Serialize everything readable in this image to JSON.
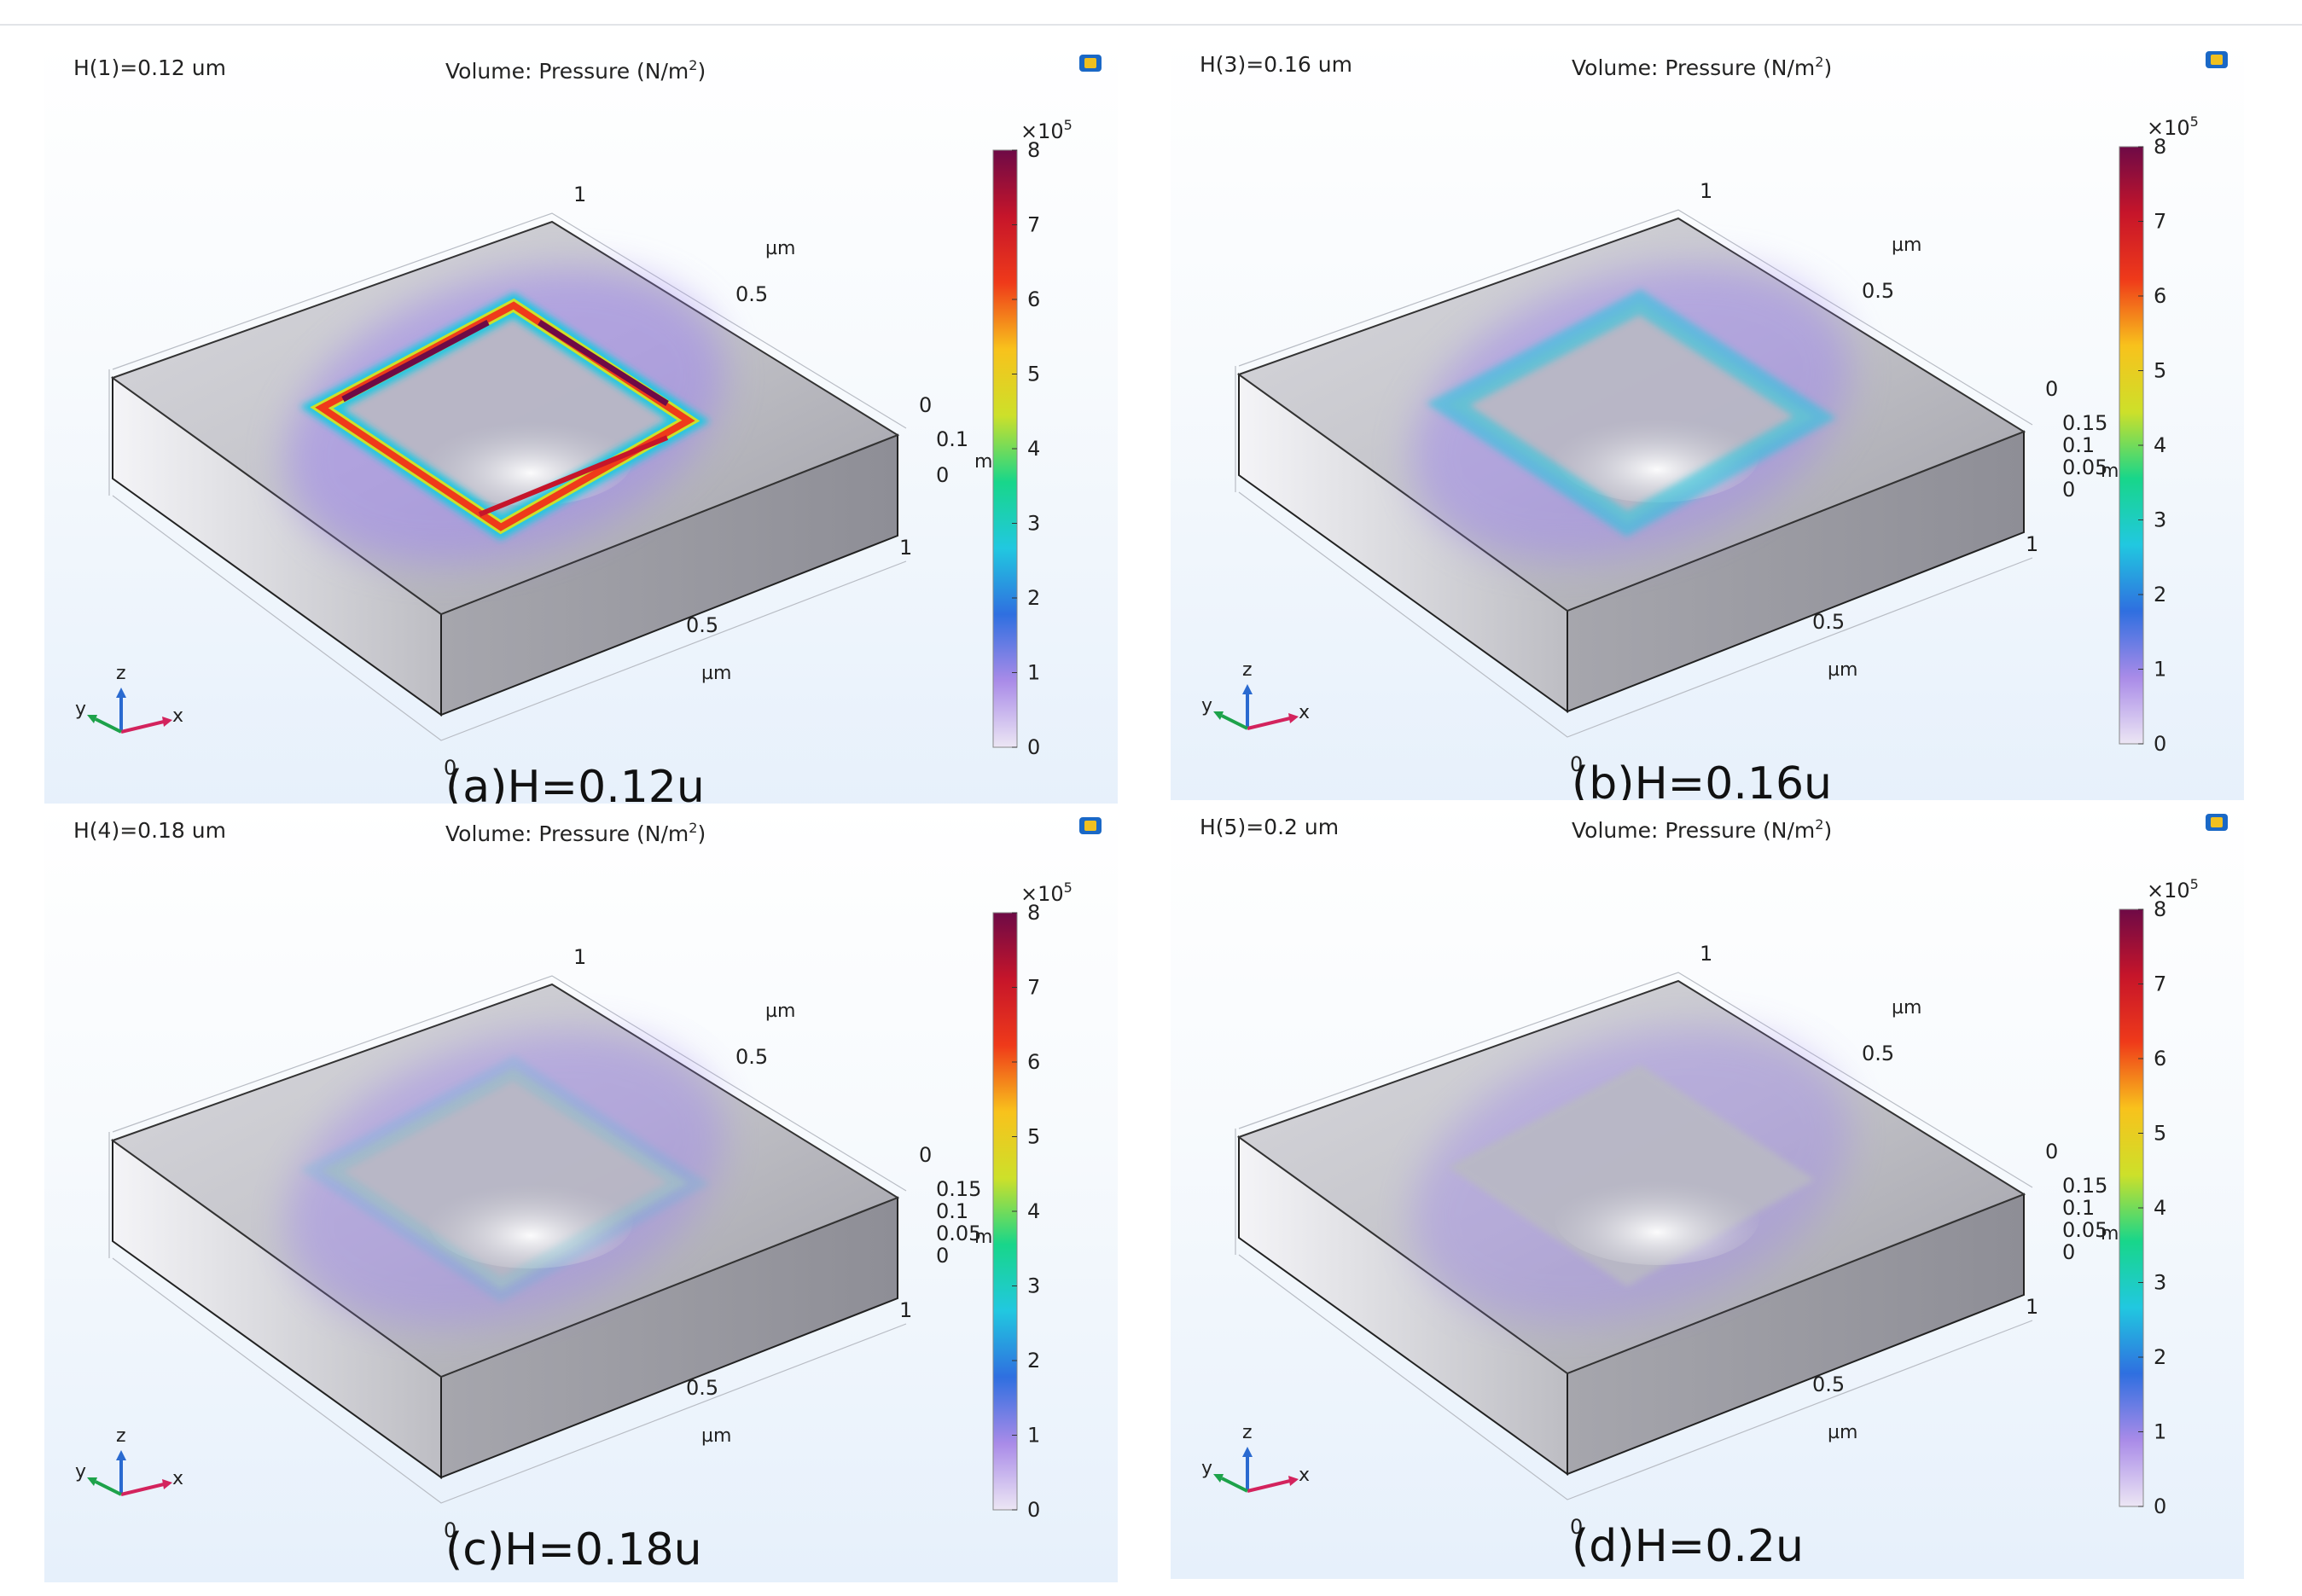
{
  "colormap": {
    "stops": [
      "#ece6f4",
      "#a98be8",
      "#2f6fe0",
      "#21c8e0",
      "#18d68a",
      "#cde02a",
      "#f8c21c",
      "#ef3a1a",
      "#c6152a",
      "#6e0a46"
    ]
  },
  "panels": [
    {
      "id": "a",
      "param": "H(1)=0.12 um",
      "volume_title": "Volume: Pressure (N/m",
      "units_sup": "2",
      "units_close": ")",
      "caption": "(a)H=0.12u",
      "colorbar": {
        "multiplier": "×10",
        "exponent": "5",
        "ticks": [
          "8",
          "7",
          "6",
          "5",
          "4",
          "3",
          "2",
          "1",
          "0"
        ]
      },
      "axis": {
        "x_labels": [
          "0",
          "0.5",
          "1"
        ],
        "y_labels": [
          "0.5",
          "1"
        ],
        "z_labels": [
          "0",
          "0.1",
          "0"
        ],
        "x_unit": "µm",
        "y_unit": "µm",
        "z_unit": "m"
      },
      "triad": {
        "x": "x",
        "y": "y",
        "z": "z"
      },
      "indicator": "logo-icon"
    },
    {
      "id": "b",
      "param": "H(3)=0.16 um",
      "volume_title": "Volume: Pressure (N/m",
      "units_sup": "2",
      "units_close": ")",
      "caption": "(b)H=0.16u",
      "colorbar": {
        "multiplier": "×10",
        "exponent": "5",
        "ticks": [
          "8",
          "7",
          "6",
          "5",
          "4",
          "3",
          "2",
          "1",
          "0"
        ]
      },
      "axis": {
        "x_labels": [
          "0",
          "0.5",
          "1"
        ],
        "y_labels": [
          "0.5",
          "1"
        ],
        "z_labels": [
          "0",
          "0.15",
          "0.1",
          "0.05",
          "0"
        ],
        "x_unit": "µm",
        "y_unit": "µm",
        "z_unit": "m"
      },
      "triad": {
        "x": "x",
        "y": "y",
        "z": "z"
      }
    },
    {
      "id": "c",
      "param": "H(4)=0.18 um",
      "volume_title": "Volume: Pressure (N/m",
      "units_sup": "2",
      "units_close": ")",
      "caption": "(c)H=0.18u",
      "colorbar": {
        "multiplier": "×10",
        "exponent": "5",
        "ticks": [
          "8",
          "7",
          "6",
          "5",
          "4",
          "3",
          "2",
          "1",
          "0"
        ]
      },
      "axis": {
        "x_labels": [
          "0",
          "0.5",
          "1"
        ],
        "y_labels": [
          "0.5",
          "1"
        ],
        "z_labels": [
          "0",
          "0.15",
          "0.1",
          "0.05",
          "0"
        ],
        "x_unit": "µm",
        "y_unit": "µm",
        "z_unit": "m"
      },
      "triad": {
        "x": "x",
        "y": "y",
        "z": "z"
      }
    },
    {
      "id": "d",
      "param": "H(5)=0.2 um",
      "volume_title": "Volume: Pressure (N/m",
      "units_sup": "2",
      "units_close": ")",
      "caption": "(d)H=0.2u",
      "colorbar": {
        "multiplier": "×10",
        "exponent": "5",
        "ticks": [
          "8",
          "7",
          "6",
          "5",
          "4",
          "3",
          "2",
          "1",
          "0"
        ]
      },
      "axis": {
        "x_labels": [
          "0",
          "0.5",
          "1"
        ],
        "y_labels": [
          "0.5",
          "1"
        ],
        "z_labels": [
          "0",
          "0.15",
          "0.1",
          "0.05",
          "0"
        ],
        "x_unit": "µm",
        "y_unit": "µm",
        "z_unit": "m"
      },
      "triad": {
        "x": "x",
        "y": "y",
        "z": "z"
      }
    }
  ]
}
